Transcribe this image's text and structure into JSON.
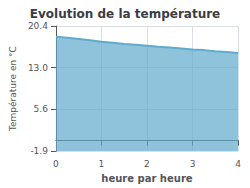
{
  "chart_data": {
    "type": "area",
    "title": "Evolution de la température",
    "xlabel": "heure par heure",
    "ylabel": "Température en °C",
    "x": [
      0,
      0.25,
      0.5,
      0.75,
      1.0,
      1.25,
      1.5,
      1.75,
      2.0,
      2.25,
      2.5,
      2.75,
      3.0,
      3.25,
      3.5,
      3.75,
      4.0
    ],
    "values": [
      18.5,
      18.3,
      18.1,
      17.85,
      17.6,
      17.4,
      17.2,
      17.05,
      16.9,
      16.7,
      16.55,
      16.4,
      16.2,
      16.1,
      15.9,
      15.75,
      15.6
    ],
    "color": "#60aacc",
    "xlim": [
      0,
      4
    ],
    "xticks": [
      0,
      1,
      2,
      3,
      4
    ],
    "ylim": [
      -1.9,
      20.4
    ],
    "yticks": [
      -1.9,
      5.6,
      {
        "value": 13.0,
        "label": "13.0"
      },
      20.4
    ],
    "grid": true
  }
}
